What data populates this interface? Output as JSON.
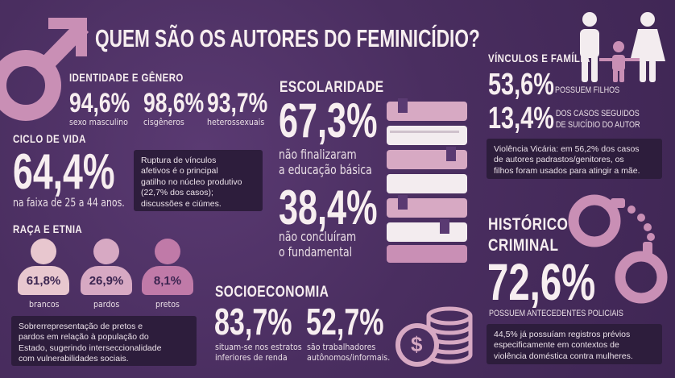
{
  "title": "QUEM SÃO OS AUTORES DO FEMINICÍDIO?",
  "identidade": {
    "heading": "IDENTIDADE E GÊNERO",
    "stats": [
      {
        "value": "94,6%",
        "label": "sexo masculino"
      },
      {
        "value": "98,6%",
        "label": "cisgêneros"
      },
      {
        "value": "93,7%",
        "label": "heterossexuais"
      }
    ]
  },
  "ciclo": {
    "heading": "CICLO DE VIDA",
    "value": "64,4%",
    "label": "na faixa de 25 a 44 anos.",
    "note": [
      "Ruptura de vínculos",
      "afetivos é o principal",
      "gatilho no núcleo produtivo",
      "(22,7% dos casos);",
      "discussões e ciúmes."
    ]
  },
  "raca": {
    "heading": "RAÇA E ETNIA",
    "groups": [
      {
        "value": "61,8%",
        "label": "brancos",
        "color": "#e8c7cf"
      },
      {
        "value": "26,9%",
        "label": "pardos",
        "color": "#d7a9c3"
      },
      {
        "value": "8,1%",
        "label": "pretos",
        "color": "#c07aa8"
      }
    ],
    "note": [
      "Sobrerrepresentação de pretos e",
      "pardos em relação à população do",
      "Estado, sugerindo interseccionalidade",
      "com vulnerabilidades sociais."
    ]
  },
  "escolaridade": {
    "heading": "ESCOLARIDADE",
    "value1": "67,3%",
    "label1": [
      "não finalizaram",
      "a educação básica"
    ],
    "value2": "38,4%",
    "label2": [
      "não concluíram",
      "o fundamental"
    ]
  },
  "socioeconomia": {
    "heading": "SOCIOECONOMIA",
    "stats": [
      {
        "value": "83,7%",
        "label": [
          "situam-se nos estratos",
          "inferiores de renda"
        ]
      },
      {
        "value": "52,7%",
        "label": [
          "são trabalhadores",
          "autônomos/informais."
        ]
      }
    ],
    "coin_symbol": "$"
  },
  "vinculos": {
    "heading": "VÍNCULOS E FAMÍLIA",
    "stat1": {
      "value": "53,6%",
      "label": "POSSUEM FILHOS"
    },
    "stat2": {
      "value": "13,4%",
      "label": [
        "DOS CASOS SEGUIDOS",
        "DE SUICÍDIO DO AUTOR"
      ]
    },
    "note": [
      "Violência Vicária: em 56,2% dos casos",
      "de autores padrastos/genitores, os",
      "filhos foram usados para atingir a mãe."
    ]
  },
  "historico": {
    "heading": [
      "HISTÓRICO",
      "CRIMINAL"
    ],
    "value": "72,6%",
    "label": "POSSUEM ANTECEDENTES POLICIAIS",
    "note": [
      "44,5% já possuíam registros prévios",
      "especificamente em contextos de",
      "violência doméstica contra mulheres."
    ]
  },
  "colors": {
    "background": "#4b2f61",
    "accent_pink": "#c98fb5",
    "panel": "#2d1d3c",
    "text": "#f7eef0"
  },
  "icons": [
    "male-symbol-icon",
    "books-icon",
    "coins-icon",
    "family-icon",
    "handcuffs-icon"
  ]
}
